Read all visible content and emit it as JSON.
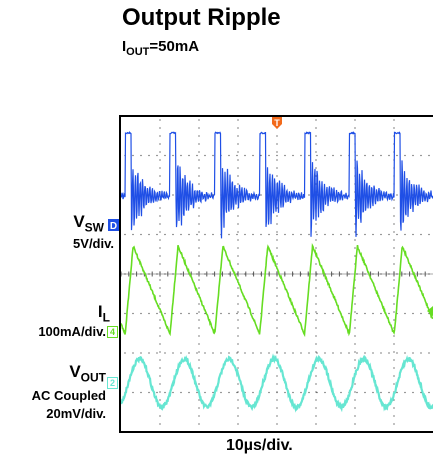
{
  "header": {
    "title": "Output Ripple",
    "subtitle_main": "I",
    "subtitle_sub": "OUT",
    "subtitle_rest": "=50mA"
  },
  "channels": {
    "vsw": {
      "name_main": "V",
      "name_sub": "SW",
      "scale": "5V/div.",
      "marker": "D"
    },
    "il": {
      "name_main": "I",
      "name_sub": "L",
      "scale": "100mA/div.",
      "marker": "4"
    },
    "vout": {
      "name_main": "V",
      "name_sub": "OUT",
      "coupling": "AC Coupled",
      "scale": "20mV/div.",
      "marker": "2"
    }
  },
  "trigger": {
    "marker": "T"
  },
  "xaxis": {
    "label": "10µs/div."
  },
  "colors": {
    "vsw": "#1f4fe6",
    "il": "#66dd22",
    "vout": "#66e6d2",
    "trigger": "#f26a1b",
    "grid": "#555555",
    "frame": "#000000"
  },
  "chart_data": {
    "type": "line",
    "title": "Output Ripple",
    "subtitle": "IOUT=50mA",
    "xlabel": "10µs/div.",
    "time_per_div_us": 10,
    "horizontal_divisions": 8,
    "vertical_divisions": 8,
    "switching_period_us": 11.5,
    "series": [
      {
        "name": "VSW",
        "scale": "5V/div.",
        "waveform": "switch-node with ringing",
        "high_v": 10,
        "low_v": 0
      },
      {
        "name": "IL",
        "scale": "100mA/div.",
        "waveform": "triangular",
        "peak_ma": 200,
        "valley_ma": 0
      },
      {
        "name": "VOUT",
        "coupling": "AC Coupled",
        "scale": "20mV/div.",
        "waveform": "sinusoidal ripple",
        "ripple_pp_mv": 20
      }
    ]
  }
}
